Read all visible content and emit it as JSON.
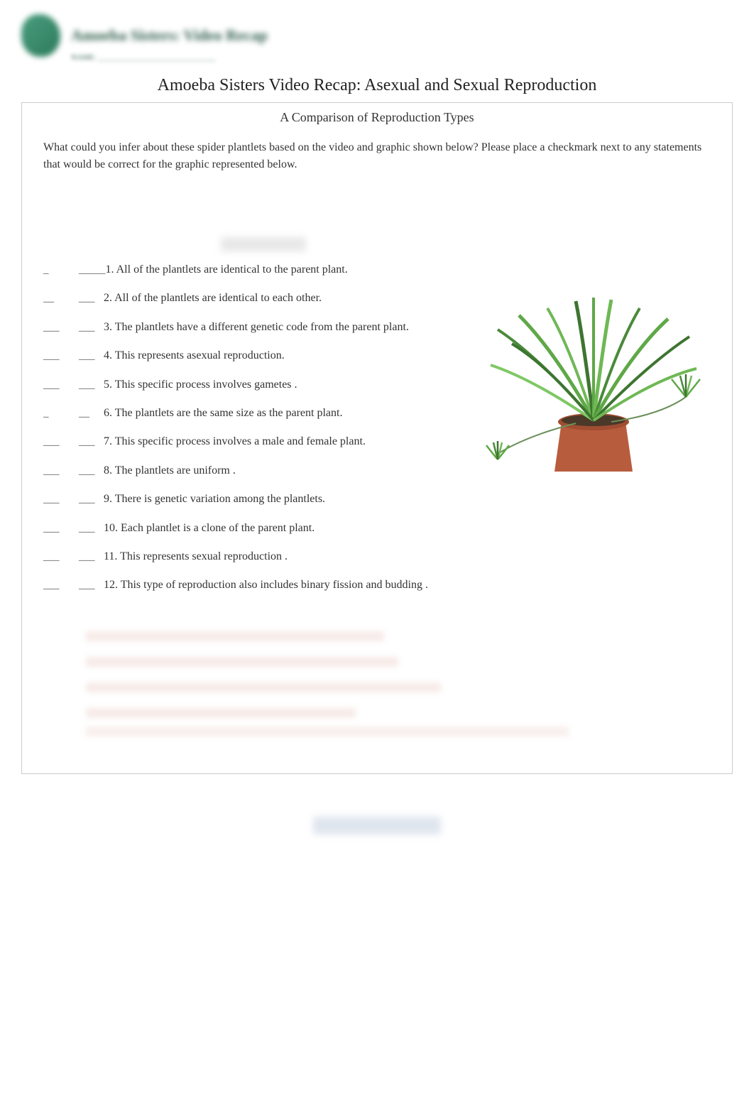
{
  "header": {
    "banner_title": "Amoeba Sisters: Video Recap",
    "banner_sub": "NAME: ______________________________"
  },
  "title": "Amoeba Sisters Video Recap: Asexual and Sexual Reproduction",
  "subtitle": "A Comparison of Reproduction Types",
  "intro": "What could you infer about these spider plantlets based on the video and graphic shown below? Please place a checkmark next to any statements that would be correct    for the graphic represented below.",
  "questions": [
    {
      "blank1": "_",
      "blank2": "_____",
      "num": "1.",
      "text": "All of the plantlets are identical to the parent plant."
    },
    {
      "blank1": "__",
      "blank2": "___",
      "num": "2.",
      "text": "All of the plantlets are identical to each other."
    },
    {
      "blank1": "___",
      "blank2": "___",
      "num": "3.",
      "text": "The plantlets have a different  genetic code  from the parent plant."
    },
    {
      "blank1": "___",
      "blank2": "___",
      "num": "4.",
      "text": "This represents  asexual reproduction."
    },
    {
      "blank1": "___",
      "blank2": "___",
      "num": "5.",
      "text": "This specific process involves gametes ."
    },
    {
      "blank1": "_",
      "blank2": "__",
      "num": "6.",
      "text": "The plantlets are the same size as the parent plant."
    },
    {
      "blank1": "___",
      "blank2": "___",
      "num": "7.",
      "text": "This specific process involves a male and female plant."
    },
    {
      "blank1": "___",
      "blank2": "___",
      "num": "8.",
      "text": "The plantlets are uniform ."
    },
    {
      "blank1": "___",
      "blank2": "___",
      "num": "9.",
      "text": "There is genetic variation  among the plantlets."
    },
    {
      "blank1": "___",
      "blank2": "___",
      "num": "10.",
      "text": "Each plantlet is a clone of the parent plant."
    },
    {
      "blank1": "___",
      "blank2": "___",
      "num": "11.",
      "text": "This represents  sexual reproduction  ."
    },
    {
      "blank1": "___",
      "blank2": "___",
      "num": "12.",
      "text": "This type of reproduction also includes binary fission and budding ."
    }
  ],
  "plant": {
    "pot_color": "#b85c3e",
    "pot_rim_color": "#a04d32",
    "soil_color": "#4a3828",
    "leaf_colors": [
      "#5fa847",
      "#4a8a3a",
      "#6fb855",
      "#3d7530",
      "#7fc865"
    ],
    "plantlet_color": "#5fa847"
  },
  "colors": {
    "text": "#333333",
    "title": "#222222",
    "border": "#cccccc",
    "background": "#ffffff",
    "logo": "#2d7a5c"
  }
}
